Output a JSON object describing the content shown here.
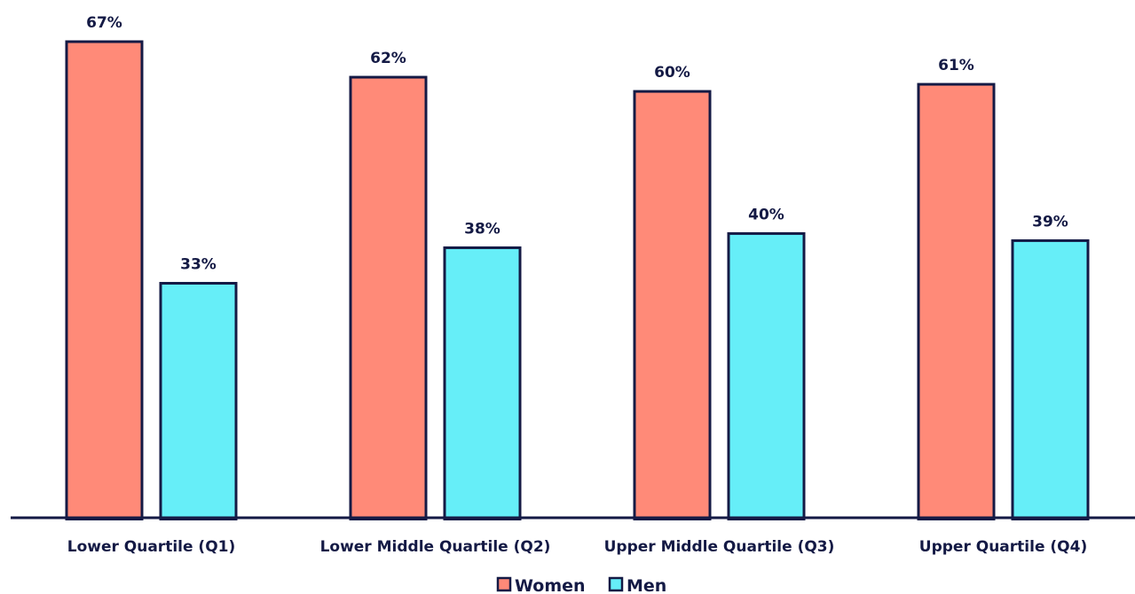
{
  "chart_data": {
    "type": "bar",
    "categories": [
      "Lower Quartile (Q1)",
      "Lower Middle Quartile (Q2)",
      "Upper Middle Quartile (Q3)",
      "Upper Quartile (Q4)"
    ],
    "series": [
      {
        "name": "Women",
        "values": [
          67,
          62,
          60,
          61
        ],
        "labels": [
          "67%",
          "62%",
          "60%",
          "61%"
        ],
        "color": "#ff8a78"
      },
      {
        "name": "Men",
        "values": [
          33,
          38,
          40,
          39
        ],
        "labels": [
          "33%",
          "38%",
          "40%",
          "39%"
        ],
        "color": "#66eef8"
      }
    ],
    "unit": "%",
    "ylim": [
      0,
      67
    ],
    "grid": false,
    "legend_position": "bottom-center",
    "axis_color": "#141a45"
  }
}
